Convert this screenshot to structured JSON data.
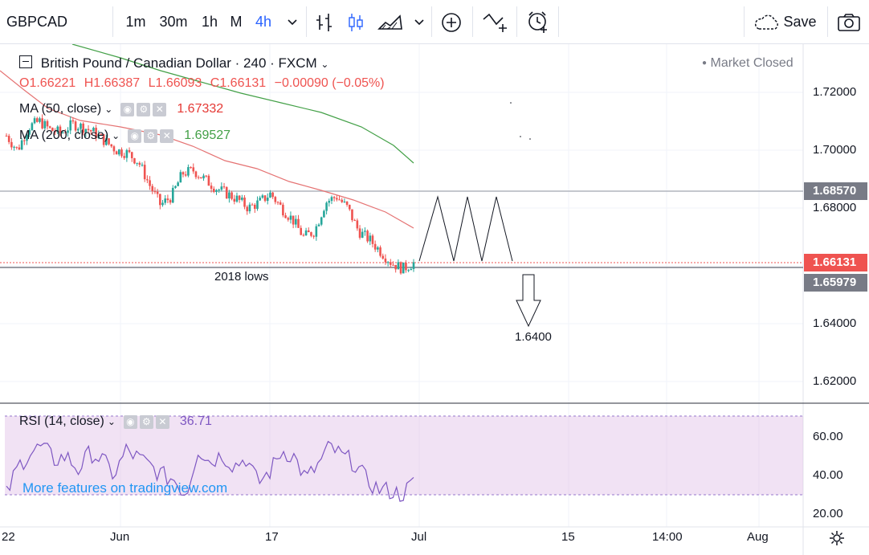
{
  "toolbar": {
    "symbol": "GBPCAD",
    "intervals": [
      "1m",
      "30m",
      "1h",
      "M",
      "4h"
    ],
    "active_interval": "4h",
    "save_label": "Save",
    "icons": [
      "chevron-down-icon",
      "bar-style-icon",
      "candles-icon",
      "area-icon",
      "chevron-down-icon",
      "add-icon",
      "compare-icon",
      "alert-icon",
      "cloud-icon",
      "camera-icon"
    ]
  },
  "legend": {
    "title": "British Pound / Canadian Dollar · 240 · FXCM",
    "market_status": "Market Closed",
    "ohlc": {
      "o": "O1.66221",
      "h": "H1.66387",
      "l": "L1.66093",
      "c": "C1.66131",
      "chg": "−0.00090 (−0.05%)"
    }
  },
  "indicators": {
    "ma50": {
      "label": "MA (50, close)",
      "value": "1.67332",
      "color": "#e53935"
    },
    "ma200": {
      "label": "MA (200, close)",
      "value": "1.69527",
      "color": "#43a047"
    },
    "rsi": {
      "label": "RSI (14, close)",
      "value": "36.71",
      "color": "#7e57c2"
    }
  },
  "annotations": {
    "lows_label": "2018 lows",
    "target_label": "1.6400"
  },
  "price_axis": {
    "ticks": [
      "1.72000",
      "1.70000",
      "1.68000",
      "1.64000",
      "1.62000"
    ],
    "tags": [
      {
        "label": "1.68570",
        "color": "#787b86"
      },
      {
        "label": "1.66131",
        "color": "#ef5350"
      },
      {
        "label": "1.65979",
        "color": "#787b86"
      }
    ]
  },
  "rsi_axis": {
    "ticks": [
      "60.00",
      "40.00",
      "20.00"
    ]
  },
  "time_axis": {
    "labels": [
      "22",
      "Jun",
      "17",
      "Jul",
      "15",
      "14:00",
      "Aug"
    ]
  },
  "watermark": "More features on tradingview.com",
  "chart_data": {
    "type": "candlestick",
    "symbol": "GBPCAD",
    "timeframe": "240",
    "ylim": [
      1.61,
      1.73
    ],
    "close_path": [
      1.705,
      1.7,
      1.708,
      1.71,
      1.707,
      1.706,
      1.709,
      1.708,
      1.706,
      1.703,
      1.7,
      1.699,
      1.696,
      1.688,
      1.681,
      1.684,
      1.692,
      1.693,
      1.69,
      1.687,
      1.685,
      1.683,
      1.68,
      1.682,
      1.685,
      1.68,
      1.676,
      1.67,
      1.672,
      1.682,
      1.684,
      1.68,
      1.672,
      1.669,
      1.665,
      1.661,
      1.659,
      1.661
    ],
    "ma50": [
      1.717,
      1.713,
      1.71,
      1.707,
      1.703,
      1.699,
      1.695,
      1.692,
      1.69,
      1.687,
      1.685,
      1.683,
      1.679,
      1.676,
      1.673
    ],
    "ma200": [
      1.729,
      1.724,
      1.72,
      1.716,
      1.712,
      1.708,
      1.703,
      1.699,
      1.695
    ],
    "horizontal_levels": [
      1.6857,
      1.66131,
      1.65979
    ],
    "rsi_path": [
      30,
      45,
      52,
      55,
      48,
      50,
      43,
      52,
      48,
      40,
      53,
      49,
      45,
      40,
      38,
      30,
      54,
      47,
      51,
      45,
      49,
      36,
      42,
      53,
      50,
      38,
      45,
      55,
      50,
      47,
      38,
      33,
      32,
      30,
      36
    ],
    "rsi_band": [
      30,
      70
    ]
  }
}
